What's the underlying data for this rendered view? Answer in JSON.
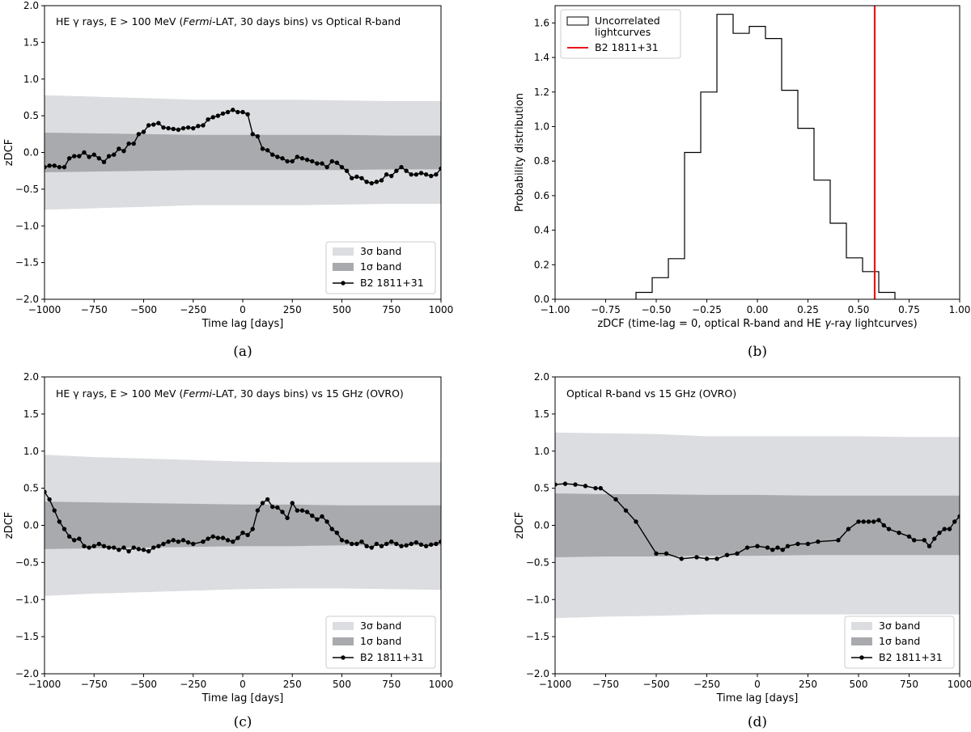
{
  "chart_data": [
    {
      "id": "a",
      "type": "line",
      "caption": "(a)",
      "title_parts": [
        {
          "text": "HE γ rays, E > 100 MeV ("
        },
        {
          "text": "Fermi",
          "italic": true
        },
        {
          "text": "-LAT, 30 days bins) vs Optical R-band"
        }
      ],
      "xlabel": "Time lag [days]",
      "ylabel": "zDCF",
      "xlim": [
        -1000,
        1000
      ],
      "ylim": [
        -2.0,
        2.0
      ],
      "xticks": [
        -1000,
        -750,
        -500,
        -250,
        0,
        250,
        500,
        750,
        1000
      ],
      "yticks": [
        -2.0,
        -1.5,
        -1.0,
        -0.5,
        0.0,
        0.5,
        1.0,
        1.5,
        2.0
      ],
      "bands": {
        "x": [
          -1000,
          -750,
          -500,
          -250,
          0,
          250,
          500,
          750,
          1000
        ],
        "sigma3_upper": [
          0.78,
          0.76,
          0.74,
          0.72,
          0.72,
          0.72,
          0.71,
          0.7,
          0.7
        ],
        "sigma3_lower": [
          -0.78,
          -0.76,
          -0.74,
          -0.72,
          -0.72,
          -0.72,
          -0.71,
          -0.7,
          -0.7
        ],
        "sigma1_upper": [
          0.27,
          0.26,
          0.25,
          0.24,
          0.24,
          0.24,
          0.24,
          0.23,
          0.23
        ],
        "sigma1_lower": [
          -0.27,
          -0.26,
          -0.25,
          -0.24,
          -0.24,
          -0.24,
          -0.24,
          -0.23,
          -0.23
        ]
      },
      "series": [
        {
          "name": "B2 1811+31",
          "x": [
            -1000,
            -975,
            -950,
            -925,
            -900,
            -875,
            -850,
            -825,
            -800,
            -775,
            -750,
            -725,
            -700,
            -675,
            -650,
            -625,
            -600,
            -575,
            -550,
            -525,
            -500,
            -475,
            -450,
            -425,
            -400,
            -375,
            -350,
            -325,
            -300,
            -275,
            -250,
            -225,
            -200,
            -175,
            -150,
            -125,
            -100,
            -75,
            -50,
            -25,
            0,
            25,
            50,
            75,
            100,
            125,
            150,
            175,
            200,
            225,
            250,
            275,
            300,
            325,
            350,
            375,
            400,
            425,
            450,
            475,
            500,
            525,
            550,
            575,
            600,
            625,
            650,
            675,
            700,
            725,
            750,
            775,
            800,
            825,
            850,
            875,
            900,
            925,
            950,
            975,
            1000
          ],
          "y": [
            -0.2,
            -0.18,
            -0.18,
            -0.2,
            -0.2,
            -0.08,
            -0.05,
            -0.05,
            0.0,
            -0.06,
            -0.03,
            -0.08,
            -0.13,
            -0.05,
            -0.03,
            0.05,
            0.02,
            0.12,
            0.12,
            0.25,
            0.28,
            0.37,
            0.38,
            0.4,
            0.34,
            0.33,
            0.32,
            0.31,
            0.33,
            0.34,
            0.33,
            0.36,
            0.37,
            0.45,
            0.48,
            0.5,
            0.53,
            0.55,
            0.58,
            0.55,
            0.55,
            0.52,
            0.25,
            0.22,
            0.05,
            0.03,
            -0.03,
            -0.06,
            -0.08,
            -0.12,
            -0.12,
            -0.06,
            -0.08,
            -0.1,
            -0.12,
            -0.15,
            -0.15,
            -0.2,
            -0.12,
            -0.14,
            -0.2,
            -0.25,
            -0.35,
            -0.33,
            -0.35,
            -0.4,
            -0.42,
            -0.4,
            -0.38,
            -0.3,
            -0.32,
            -0.25,
            -0.2,
            -0.25,
            -0.3,
            -0.3,
            -0.28,
            -0.3,
            -0.32,
            -0.3,
            -0.22
          ]
        }
      ],
      "legend": {
        "position": "lower-right",
        "entries": [
          "3σ band",
          "1σ band",
          "B2 1811+31"
        ]
      }
    },
    {
      "id": "b",
      "type": "histogram",
      "caption": "(b)",
      "xlabel_parts": [
        {
          "text": "zDCF (time-lag = 0, optical R-band and HE "
        },
        {
          "text": "γ",
          "italic": true
        },
        {
          "text": "-ray lightcurves)"
        }
      ],
      "ylabel": "Probability distribution",
      "xlim": [
        -1.0,
        1.0
      ],
      "ylim": [
        0.0,
        1.7
      ],
      "xticks": [
        -1.0,
        -0.75,
        -0.5,
        -0.25,
        0.0,
        0.25,
        0.5,
        0.75,
        1.0
      ],
      "xtick_labels": [
        "−1.00",
        "−0.75",
        "−0.50",
        "−0.25",
        "0.00",
        "0.25",
        "0.50",
        "0.75",
        "1.00"
      ],
      "yticks": [
        0.0,
        0.2,
        0.4,
        0.6,
        0.8,
        1.0,
        1.2,
        1.4,
        1.6
      ],
      "bin_edges": [
        -0.6,
        -0.52,
        -0.44,
        -0.36,
        -0.28,
        -0.2,
        -0.12,
        -0.04,
        0.04,
        0.12,
        0.2,
        0.28,
        0.36,
        0.44,
        0.52,
        0.6,
        0.68
      ],
      "counts": [
        0.04,
        0.125,
        0.235,
        0.85,
        1.2,
        1.65,
        1.54,
        1.58,
        1.51,
        1.21,
        0.99,
        0.69,
        0.44,
        0.24,
        0.16,
        0.04
      ],
      "vline": {
        "x": 0.58,
        "color": "#e8151b"
      },
      "legend": {
        "position": "upper-left",
        "entries": [
          "Uncorrelated",
          "lightcurves",
          "B2 1811+31"
        ]
      }
    },
    {
      "id": "c",
      "type": "line",
      "caption": "(c)",
      "title_parts": [
        {
          "text": "HE γ rays, E > 100 MeV ("
        },
        {
          "text": "Fermi",
          "italic": true
        },
        {
          "text": "-LAT, 30 days bins) vs 15 GHz (OVRO)"
        }
      ],
      "xlabel": "Time lag [days]",
      "ylabel": "zDCF",
      "xlim": [
        -1000,
        1000
      ],
      "ylim": [
        -2.0,
        2.0
      ],
      "xticks": [
        -1000,
        -750,
        -500,
        -250,
        0,
        250,
        500,
        750,
        1000
      ],
      "yticks": [
        -2.0,
        -1.5,
        -1.0,
        -0.5,
        0.0,
        0.5,
        1.0,
        1.5,
        2.0
      ],
      "bands": {
        "x": [
          -1000,
          -750,
          -500,
          -250,
          0,
          250,
          500,
          750,
          1000
        ],
        "sigma3_upper": [
          0.95,
          0.92,
          0.9,
          0.88,
          0.86,
          0.85,
          0.85,
          0.85,
          0.85
        ],
        "sigma3_lower": [
          -0.95,
          -0.92,
          -0.9,
          -0.88,
          -0.86,
          -0.85,
          -0.85,
          -0.86,
          -0.87
        ],
        "sigma1_upper": [
          0.32,
          0.31,
          0.3,
          0.29,
          0.28,
          0.28,
          0.27,
          0.27,
          0.27
        ],
        "sigma1_lower": [
          -0.32,
          -0.31,
          -0.3,
          -0.29,
          -0.28,
          -0.28,
          -0.27,
          -0.27,
          -0.27
        ]
      },
      "series": [
        {
          "name": "B2 1811+31",
          "x": [
            -1000,
            -975,
            -950,
            -925,
            -900,
            -875,
            -850,
            -825,
            -800,
            -775,
            -750,
            -725,
            -700,
            -675,
            -650,
            -625,
            -600,
            -575,
            -550,
            -525,
            -500,
            -475,
            -450,
            -425,
            -400,
            -375,
            -350,
            -325,
            -300,
            -275,
            -250,
            -200,
            -175,
            -150,
            -125,
            -100,
            -75,
            -50,
            -25,
            0,
            25,
            50,
            75,
            100,
            125,
            150,
            175,
            200,
            225,
            250,
            275,
            300,
            325,
            350,
            375,
            400,
            425,
            450,
            475,
            500,
            525,
            550,
            575,
            600,
            625,
            650,
            675,
            700,
            725,
            750,
            775,
            800,
            825,
            850,
            875,
            900,
            925,
            950,
            975,
            1000
          ],
          "y": [
            0.45,
            0.35,
            0.2,
            0.05,
            -0.05,
            -0.15,
            -0.2,
            -0.18,
            -0.28,
            -0.3,
            -0.28,
            -0.25,
            -0.28,
            -0.3,
            -0.3,
            -0.33,
            -0.3,
            -0.35,
            -0.3,
            -0.32,
            -0.33,
            -0.35,
            -0.3,
            -0.28,
            -0.25,
            -0.22,
            -0.2,
            -0.22,
            -0.2,
            -0.23,
            -0.25,
            -0.22,
            -0.18,
            -0.15,
            -0.17,
            -0.17,
            -0.2,
            -0.22,
            -0.17,
            -0.1,
            -0.13,
            -0.05,
            0.2,
            0.3,
            0.35,
            0.25,
            0.24,
            0.18,
            0.1,
            0.3,
            0.2,
            0.2,
            0.18,
            0.13,
            0.08,
            0.12,
            0.05,
            -0.05,
            -0.1,
            -0.2,
            -0.22,
            -0.25,
            -0.25,
            -0.22,
            -0.28,
            -0.3,
            -0.25,
            -0.28,
            -0.25,
            -0.22,
            -0.25,
            -0.28,
            -0.27,
            -0.25,
            -0.23,
            -0.26,
            -0.28,
            -0.26,
            -0.25,
            -0.22
          ]
        }
      ],
      "legend": {
        "position": "lower-right",
        "entries": [
          "3σ band",
          "1σ band",
          "B2 1811+31"
        ]
      }
    },
    {
      "id": "d",
      "type": "line",
      "caption": "(d)",
      "title_parts": [
        {
          "text": "Optical R-band vs 15 GHz (OVRO)"
        }
      ],
      "xlabel": "Time lag [days]",
      "ylabel": "zDCF",
      "xlim": [
        -1000,
        1000
      ],
      "ylim": [
        -2.0,
        2.0
      ],
      "xticks": [
        -1000,
        -750,
        -500,
        -250,
        0,
        250,
        500,
        750,
        1000
      ],
      "yticks": [
        -2.0,
        -1.5,
        -1.0,
        -0.5,
        0.0,
        0.5,
        1.0,
        1.5,
        2.0
      ],
      "bands": {
        "x": [
          -1000,
          -750,
          -500,
          -250,
          0,
          250,
          500,
          750,
          1000
        ],
        "sigma3_upper": [
          1.25,
          1.24,
          1.23,
          1.2,
          1.2,
          1.2,
          1.2,
          1.19,
          1.19
        ],
        "sigma3_lower": [
          -1.25,
          -1.23,
          -1.22,
          -1.2,
          -1.2,
          -1.2,
          -1.2,
          -1.2,
          -1.2
        ],
        "sigma1_upper": [
          0.43,
          0.42,
          0.42,
          0.41,
          0.41,
          0.4,
          0.4,
          0.4,
          0.4
        ],
        "sigma1_lower": [
          -0.43,
          -0.42,
          -0.42,
          -0.41,
          -0.41,
          -0.4,
          -0.4,
          -0.4,
          -0.4
        ]
      },
      "series": [
        {
          "name": "B2 1811+31",
          "x": [
            -1000,
            -950,
            -900,
            -850,
            -800,
            -775,
            -700,
            -650,
            -600,
            -500,
            -450,
            -375,
            -300,
            -250,
            -200,
            -150,
            -100,
            -50,
            0,
            50,
            75,
            100,
            125,
            150,
            200,
            250,
            300,
            400,
            450,
            500,
            525,
            550,
            575,
            600,
            625,
            650,
            700,
            750,
            775,
            825,
            850,
            875,
            900,
            925,
            950,
            975,
            1000
          ],
          "y": [
            0.55,
            0.56,
            0.55,
            0.53,
            0.5,
            0.5,
            0.35,
            0.2,
            0.05,
            -0.38,
            -0.38,
            -0.45,
            -0.43,
            -0.45,
            -0.45,
            -0.4,
            -0.38,
            -0.3,
            -0.28,
            -0.3,
            -0.33,
            -0.3,
            -0.33,
            -0.28,
            -0.25,
            -0.25,
            -0.22,
            -0.2,
            -0.05,
            0.05,
            0.05,
            0.05,
            0.05,
            0.07,
            0.0,
            -0.05,
            -0.1,
            -0.15,
            -0.2,
            -0.2,
            -0.28,
            -0.18,
            -0.1,
            -0.05,
            -0.05,
            0.05,
            0.12
          ]
        }
      ],
      "legend": {
        "position": "lower-right",
        "entries": [
          "3σ band",
          "1σ band",
          "B2 1811+31"
        ]
      }
    }
  ]
}
